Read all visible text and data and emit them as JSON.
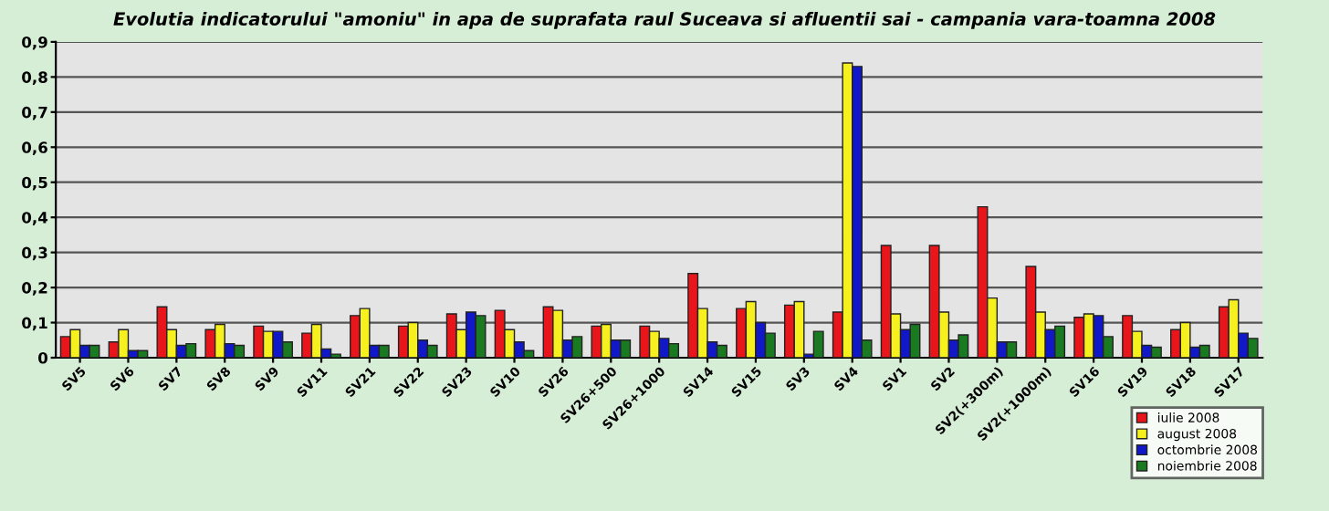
{
  "chart_data": {
    "type": "bar",
    "title": "Evolutia indicatorului \"amoniu\" in apa de suprafata raul Suceava si afluentii sai - campania vara-toamna 2008",
    "categories": [
      "SV5",
      "SV6",
      "SV7",
      "SV8",
      "SV9",
      "SV11",
      "SV21",
      "SV22",
      "SV23",
      "SV10",
      "SV26",
      "SV26+500",
      "SV26+1000",
      "SV14",
      "SV15",
      "SV3",
      "SV4",
      "SV1",
      "SV2",
      "SV2(+300m)",
      "SV2(+1000m)",
      "SV16",
      "SV19",
      "SV18",
      "SV17"
    ],
    "series": [
      {
        "name": "iulie 2008",
        "color": "#e8161b",
        "values": [
          0.06,
          0.045,
          0.145,
          0.08,
          0.09,
          0.07,
          0.12,
          0.09,
          0.125,
          0.135,
          0.145,
          0.09,
          0.09,
          0.24,
          0.14,
          0.15,
          0.13,
          0.32,
          0.32,
          0.43,
          0.26,
          0.115,
          0.12,
          0.08,
          0.145
        ]
      },
      {
        "name": "august 2008",
        "color": "#f5f01e",
        "values": [
          0.08,
          0.08,
          0.08,
          0.095,
          0.075,
          0.095,
          0.14,
          0.1,
          0.08,
          0.08,
          0.135,
          0.095,
          0.075,
          0.14,
          0.16,
          0.16,
          0.84,
          0.125,
          0.13,
          0.17,
          0.13,
          0.125,
          0.075,
          0.1,
          0.165
        ]
      },
      {
        "name": "octombrie 2008",
        "color": "#1018c8",
        "values": [
          0.035,
          0.02,
          0.035,
          0.04,
          0.075,
          0.025,
          0.035,
          0.05,
          0.13,
          0.045,
          0.05,
          0.05,
          0.055,
          0.045,
          0.1,
          0.01,
          0.83,
          0.08,
          0.05,
          0.045,
          0.08,
          0.12,
          0.035,
          0.03,
          0.07
        ]
      },
      {
        "name": "noiembrie 2008",
        "color": "#1a7a22",
        "values": [
          0.035,
          0.02,
          0.04,
          0.035,
          0.045,
          0.01,
          0.035,
          0.035,
          0.12,
          0.02,
          0.06,
          0.05,
          0.04,
          0.035,
          0.07,
          0.075,
          0.05,
          0.095,
          0.065,
          0.045,
          0.09,
          0.06,
          0.03,
          0.035,
          0.055
        ]
      }
    ],
    "ylim": [
      0,
      0.9
    ],
    "yticks": [
      {
        "value": 0,
        "label": "0"
      },
      {
        "value": 0.1,
        "label": "0,1"
      },
      {
        "value": 0.2,
        "label": "0,2"
      },
      {
        "value": 0.3,
        "label": "0,3"
      },
      {
        "value": 0.4,
        "label": "0,4"
      },
      {
        "value": 0.5,
        "label": "0,5"
      },
      {
        "value": 0.6,
        "label": "0,6"
      },
      {
        "value": 0.7,
        "label": "0,7"
      },
      {
        "value": 0.8,
        "label": "0,8"
      },
      {
        "value": 0.9,
        "label": "0,9"
      }
    ],
    "grid": "y",
    "legend": "bottom right"
  }
}
